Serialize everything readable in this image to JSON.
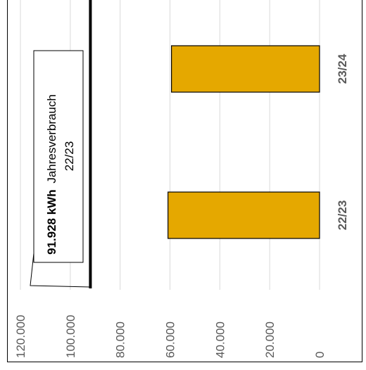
{
  "chart_data": {
    "type": "bar",
    "orientation": "rotated-90",
    "categories": [
      "22/23",
      "23/24"
    ],
    "values": [
      60800,
      59400
    ],
    "ylim": [
      0,
      120000
    ],
    "ytick_values": [
      0,
      20000,
      40000,
      60000,
      80000,
      100000,
      120000
    ],
    "ytick_labels": [
      "0",
      "20.000",
      "40.000",
      "60.000",
      "80.000",
      "100.000",
      "120.000"
    ],
    "reference_line": {
      "value": 91928,
      "callout_bold": "91.928 kWh",
      "callout_text": "Jahresverbrauch",
      "callout_year": "22/23"
    },
    "grid": true,
    "bar_color": "#E5A800"
  }
}
